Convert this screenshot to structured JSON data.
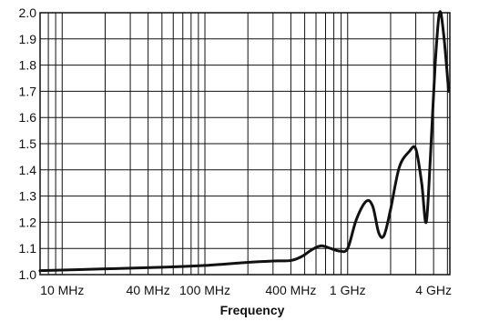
{
  "chart_data": {
    "type": "line",
    "title": "",
    "xlabel": "Frequency",
    "ylabel": "",
    "x_scale": "log",
    "xlim_hz": [
      7000000,
      5200000000
    ],
    "ylim": [
      1.0,
      2.0
    ],
    "grid": true,
    "x_tick_labels": [
      {
        "label": "10 MHz",
        "value_hz": 10000000
      },
      {
        "label": "40 MHz",
        "value_hz": 40000000
      },
      {
        "label": "100 MHz",
        "value_hz": 100000000
      },
      {
        "label": "400 MHz",
        "value_hz": 400000000
      },
      {
        "label": "1 GHz",
        "value_hz": 1000000000
      },
      {
        "label": "4 GHz",
        "value_hz": 4000000000
      }
    ],
    "x_gridlines_hz": [
      7000000,
      8000000,
      9000000,
      10000000,
      20000000,
      30000000,
      40000000,
      50000000,
      60000000,
      70000000,
      80000000,
      90000000,
      100000000,
      200000000,
      300000000,
      400000000,
      500000000,
      600000000,
      700000000,
      800000000,
      900000000,
      1000000000,
      2000000000,
      3000000000,
      4000000000,
      5000000000
    ],
    "y_ticks": [
      {
        "label": "1.0",
        "value": 1.0
      },
      {
        "label": "1.1",
        "value": 1.1
      },
      {
        "label": "1.2",
        "value": 1.2
      },
      {
        "label": "1.3",
        "value": 1.3
      },
      {
        "label": "1.4",
        "value": 1.4
      },
      {
        "label": "1.5",
        "value": 1.5
      },
      {
        "label": "1.6",
        "value": 1.6
      },
      {
        "label": "1.7",
        "value": 1.7
      },
      {
        "label": "1.8",
        "value": 1.8
      },
      {
        "label": "1.9",
        "value": 1.9
      },
      {
        "label": "2.0",
        "value": 2.0
      }
    ],
    "series": [
      {
        "color": "#111111",
        "points": [
          {
            "x_hz": 7000000,
            "y": 1.015
          },
          {
            "x_hz": 20000000,
            "y": 1.022
          },
          {
            "x_hz": 50000000,
            "y": 1.028
          },
          {
            "x_hz": 100000000,
            "y": 1.035
          },
          {
            "x_hz": 200000000,
            "y": 1.047
          },
          {
            "x_hz": 300000000,
            "y": 1.052
          },
          {
            "x_hz": 400000000,
            "y": 1.054
          },
          {
            "x_hz": 480000000,
            "y": 1.07
          },
          {
            "x_hz": 560000000,
            "y": 1.095
          },
          {
            "x_hz": 650000000,
            "y": 1.11
          },
          {
            "x_hz": 760000000,
            "y": 1.1
          },
          {
            "x_hz": 880000000,
            "y": 1.09
          },
          {
            "x_hz": 1000000000,
            "y": 1.1
          },
          {
            "x_hz": 1150000000,
            "y": 1.21
          },
          {
            "x_hz": 1350000000,
            "y": 1.28
          },
          {
            "x_hz": 1500000000,
            "y": 1.26
          },
          {
            "x_hz": 1650000000,
            "y": 1.16
          },
          {
            "x_hz": 1800000000,
            "y": 1.15
          },
          {
            "x_hz": 2000000000,
            "y": 1.25
          },
          {
            "x_hz": 2300000000,
            "y": 1.41
          },
          {
            "x_hz": 2700000000,
            "y": 1.47
          },
          {
            "x_hz": 3000000000,
            "y": 1.48
          },
          {
            "x_hz": 3300000000,
            "y": 1.35
          },
          {
            "x_hz": 3550000000,
            "y": 1.2
          },
          {
            "x_hz": 3800000000,
            "y": 1.45
          },
          {
            "x_hz": 4100000000,
            "y": 1.8
          },
          {
            "x_hz": 4400000000,
            "y": 2.0
          },
          {
            "x_hz": 4700000000,
            "y": 1.92
          },
          {
            "x_hz": 5100000000,
            "y": 1.7
          }
        ]
      }
    ]
  }
}
